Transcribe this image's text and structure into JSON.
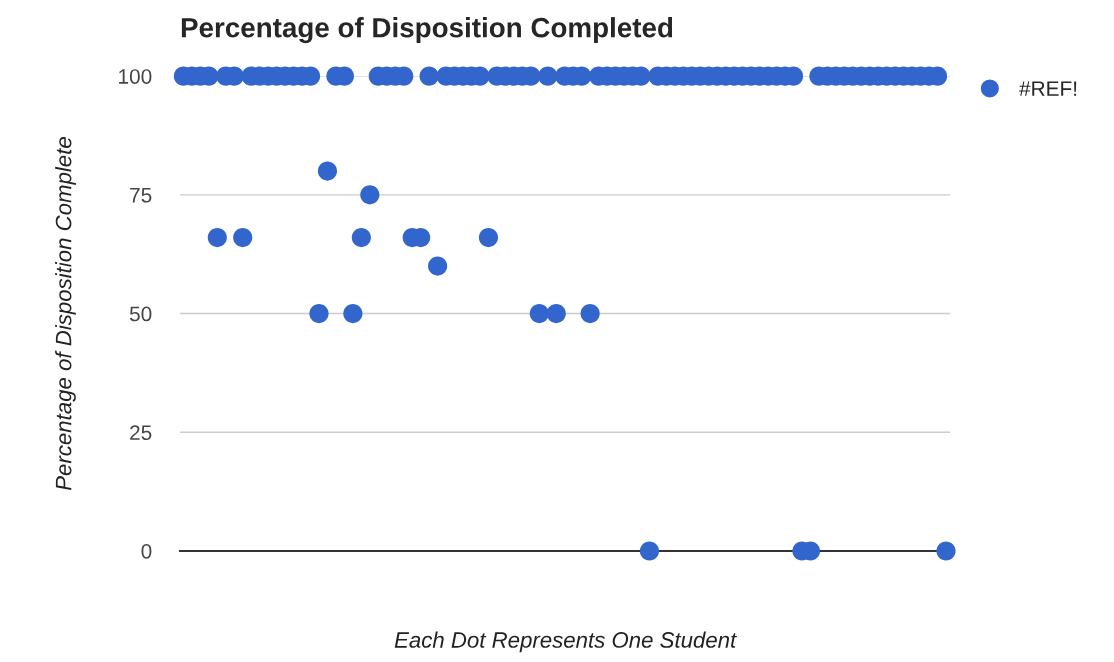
{
  "chart_data": {
    "type": "scatter",
    "title": "Percentage of Disposition Completed",
    "xlabel": "Each Dot Represents One Student",
    "ylabel": "Percentage of Disposition Complete",
    "categories": [
      null,
      null,
      null,
      null,
      null,
      null,
      null,
      null,
      null,
      null,
      null,
      null,
      null,
      null,
      null,
      null,
      null,
      null,
      null,
      null,
      null,
      null,
      null,
      null,
      null,
      null,
      null,
      null,
      null,
      null,
      null,
      null,
      null,
      null,
      null,
      null,
      null,
      null,
      null,
      null,
      null,
      null,
      null,
      null,
      null,
      null,
      null,
      null,
      null,
      null,
      null,
      null,
      null,
      null,
      null,
      null,
      null,
      null,
      null,
      null,
      null,
      null,
      null,
      null,
      null,
      null,
      null,
      null,
      null,
      null,
      null,
      null,
      null,
      null,
      null,
      null,
      null,
      null,
      null,
      null,
      null,
      null,
      null,
      null,
      null,
      null,
      null,
      null,
      null,
      null,
      null
    ],
    "series": [
      {
        "name": "#REF!",
        "color": "#3366cc",
        "values": [
          100,
          100,
          100,
          100,
          66,
          100,
          100,
          66,
          100,
          100,
          100,
          100,
          100,
          100,
          100,
          100,
          50,
          80,
          100,
          100,
          50,
          66,
          75,
          100,
          100,
          100,
          100,
          66,
          66,
          100,
          60,
          100,
          100,
          100,
          100,
          100,
          66,
          100,
          100,
          100,
          100,
          100,
          50,
          100,
          50,
          100,
          100,
          100,
          50,
          100,
          100,
          100,
          100,
          100,
          100,
          0,
          100,
          100,
          100,
          100,
          100,
          100,
          100,
          100,
          100,
          100,
          100,
          100,
          100,
          100,
          100,
          100,
          100,
          0,
          0,
          100,
          100,
          100,
          100,
          100,
          100,
          100,
          100,
          100,
          100,
          100,
          100,
          100,
          100,
          100,
          0
        ]
      }
    ],
    "ylim": [
      0,
      100
    ],
    "yticks": [
      0,
      25,
      50,
      75,
      100
    ],
    "grid": "y",
    "legend": "top right",
    "marker": "circle",
    "tick_labels": "y"
  }
}
